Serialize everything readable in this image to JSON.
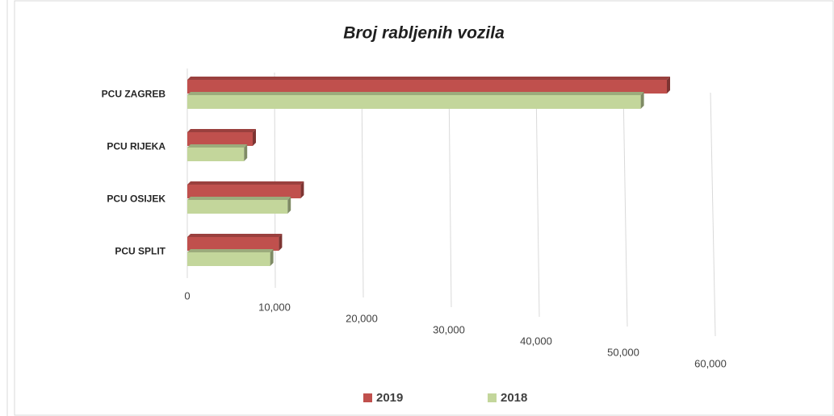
{
  "chart_data": {
    "type": "bar",
    "orientation": "horizontal",
    "title": "Broj rabljenih vozila",
    "categories": [
      "PCU ZAGREB",
      "PCU RIJEKA",
      "PCU OSIJEK",
      "PCU SPLIT"
    ],
    "series": [
      {
        "name": "2019",
        "color": "#c0504d",
        "values": [
          55000,
          7500,
          13000,
          10500
        ]
      },
      {
        "name": "2018",
        "color": "#c3d69b",
        "values": [
          52000,
          6500,
          11500,
          9500
        ]
      }
    ],
    "xlim": [
      0,
      60000
    ],
    "xticks": [
      0,
      {
        "value": 10000,
        "label": "10,000"
      },
      {
        "value": 20000,
        "label": "20,000"
      },
      {
        "value": 30000,
        "label": "30,000"
      },
      {
        "value": 40000,
        "label": "40,000"
      },
      {
        "value": 50000,
        "label": "50,000"
      },
      {
        "value": 60000,
        "label": "60,000"
      }
    ],
    "grid": true,
    "legend": "bottom"
  }
}
